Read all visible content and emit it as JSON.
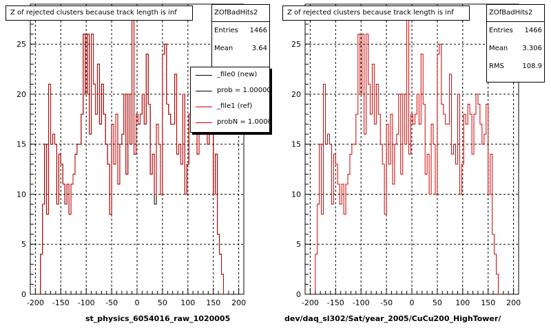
{
  "chart_data": [
    {
      "type": "histogram",
      "title": "Z of rejected clusters  because track length is inf",
      "xlabel": "st_physics_6054016_raw_1020005",
      "xlim": [
        -210,
        210
      ],
      "ylim": [
        0,
        29
      ],
      "x_ticks": [
        -200,
        -150,
        -100,
        -50,
        0,
        50,
        100,
        150,
        200
      ],
      "y_ticks": [
        0,
        5,
        10,
        15,
        20,
        25
      ],
      "grid": true,
      "bin_start": -190,
      "bin_width": 4,
      "series": [
        {
          "name": "_file0 (new)",
          "color": "#000000",
          "values": [
            4,
            9,
            15,
            8,
            21,
            15,
            16,
            15,
            9,
            14,
            13,
            11,
            9,
            11,
            8,
            11,
            12,
            14,
            15,
            15,
            18,
            26,
            20,
            26,
            16,
            26,
            21,
            18,
            23,
            17,
            21,
            18,
            15,
            13,
            8,
            17,
            13,
            18,
            11,
            15,
            16,
            20,
            12,
            20,
            15,
            28,
            14,
            18,
            17,
            18,
            20,
            17,
            24,
            19,
            12,
            14,
            9,
            17,
            15,
            10,
            24,
            25,
            19,
            18,
            17,
            17,
            22,
            14,
            15,
            13,
            20,
            10,
            13,
            18,
            17,
            19,
            18,
            14,
            18,
            20,
            19,
            17,
            15,
            16,
            19,
            10,
            14,
            6,
            4,
            2
          ]
        },
        {
          "name": "_file1 (ref)",
          "color": "#cc0000",
          "values": [
            4,
            9,
            15,
            8,
            21,
            15,
            16,
            15,
            9,
            14,
            13,
            11,
            9,
            11,
            8,
            11,
            12,
            14,
            15,
            15,
            18,
            26,
            20,
            26,
            16,
            26,
            21,
            18,
            23,
            17,
            21,
            18,
            15,
            13,
            8,
            17,
            13,
            18,
            11,
            15,
            16,
            20,
            12,
            20,
            15,
            28,
            14,
            18,
            17,
            18,
            20,
            17,
            24,
            19,
            12,
            14,
            10,
            17,
            15,
            10,
            24,
            25,
            19,
            18,
            17,
            17,
            22,
            14,
            15,
            13,
            20,
            10,
            13,
            18,
            17,
            19,
            18,
            14,
            18,
            20,
            19,
            17,
            15,
            16,
            19,
            10,
            14,
            6,
            4,
            2
          ]
        }
      ],
      "stats": {
        "name": "ZOfBadHits2",
        "entries": "1466",
        "mean": "3.64"
      },
      "legend": [
        "_file0 (new)",
        "prob = 1.000000",
        "_file1 (ref)",
        "probN = 1.000000"
      ]
    },
    {
      "type": "histogram",
      "title": "Z of rejected clusters  because track length is inf",
      "xlabel": "dev/daq_sl302/Sat/year_2005/CuCu200_HighTower/",
      "xlim": [
        -210,
        210
      ],
      "ylim": [
        0,
        29
      ],
      "x_ticks": [
        -200,
        -150,
        -100,
        -50,
        0,
        50,
        100,
        150,
        200
      ],
      "y_ticks": [
        0,
        5,
        10,
        15,
        20,
        25
      ],
      "grid": true,
      "bin_start": -190,
      "bin_width": 4,
      "series": [
        {
          "name": "ZOfBadHits2",
          "color": "#cc0000",
          "values": [
            4,
            9,
            15,
            8,
            21,
            15,
            16,
            15,
            9,
            14,
            13,
            11,
            9,
            11,
            8,
            11,
            12,
            14,
            15,
            15,
            18,
            26,
            20,
            26,
            16,
            26,
            21,
            18,
            23,
            17,
            21,
            18,
            15,
            13,
            8,
            17,
            13,
            18,
            11,
            15,
            16,
            20,
            12,
            20,
            15,
            28,
            14,
            18,
            17,
            18,
            20,
            17,
            24,
            19,
            12,
            14,
            10,
            17,
            15,
            10,
            24,
            25,
            19,
            18,
            17,
            17,
            22,
            14,
            15,
            13,
            20,
            10,
            13,
            18,
            17,
            19,
            18,
            14,
            18,
            20,
            19,
            17,
            15,
            16,
            19,
            10,
            14,
            6,
            4,
            2
          ]
        }
      ],
      "stats": {
        "name": "ZOfBadHits2",
        "entries": "1466",
        "mean": "3.306",
        "rms": "108.9"
      }
    }
  ],
  "labels": {
    "entries": "Entries",
    "mean": "Mean",
    "rms": "RMS"
  }
}
